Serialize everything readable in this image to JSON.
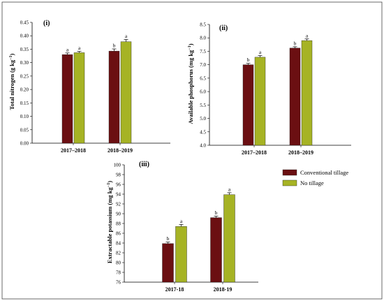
{
  "legend": {
    "items": [
      {
        "label": "Conventional tillage",
        "color": "#6b0f12"
      },
      {
        "label": "No tillage",
        "color": "#a6b324"
      }
    ]
  },
  "chart_data": [
    {
      "type": "bar",
      "panel_label": "(i)",
      "ylabel": "Total nitrogen (g kg",
      "ylabel_sup": "−1",
      "ylabel_end": ")",
      "ylim": [
        0,
        0.45
      ],
      "yticks": [
        "0.00",
        "0.05",
        "0.10",
        "0.15",
        "0.20",
        "0.25",
        "0.30",
        "0.35",
        "0.40",
        "0.45"
      ],
      "categories": [
        "2017–2018",
        "2018–2019"
      ],
      "series": [
        {
          "name": "Conventional tillage",
          "values": [
            0.33,
            0.343
          ],
          "errors": [
            0.006,
            0.008
          ],
          "letters": [
            "a",
            "b"
          ]
        },
        {
          "name": "No tillage",
          "values": [
            0.337,
            0.378
          ],
          "errors": [
            0.005,
            0.008
          ],
          "letters": [
            "a",
            "a"
          ]
        }
      ]
    },
    {
      "type": "bar",
      "panel_label": "(ii)",
      "ylabel": "Available phosphorus (mg kg",
      "ylabel_sup": "−1",
      "ylabel_end": ")",
      "ylim": [
        4.0,
        8.5
      ],
      "yticks": [
        "4.0",
        "4.5",
        "5.0",
        "5.5",
        "6.0",
        "6.5",
        "7.0",
        "7.5",
        "8.0",
        "8.5"
      ],
      "categories": [
        "2017–2018",
        "2018–2019"
      ],
      "series": [
        {
          "name": "Conventional tillage",
          "values": [
            7.0,
            7.62
          ],
          "errors": [
            0.05,
            0.05
          ],
          "letters": [
            "b",
            "b"
          ]
        },
        {
          "name": "No tillage",
          "values": [
            7.28,
            7.9
          ],
          "errors": [
            0.06,
            0.06
          ],
          "letters": [
            "a",
            "a"
          ]
        }
      ]
    },
    {
      "type": "bar",
      "panel_label": "(iii)",
      "ylabel": "Extractable potassium (mg kg",
      "ylabel_sup": "−1",
      "ylabel_end": ")",
      "ylim": [
        76,
        100
      ],
      "yticks": [
        "76",
        "78",
        "80",
        "82",
        "84",
        "86",
        "88",
        "90",
        "92",
        "94",
        "96",
        "98",
        "100"
      ],
      "categories": [
        "2017-18",
        "2018-19"
      ],
      "series": [
        {
          "name": "Conventional tillage",
          "values": [
            83.9,
            89.2
          ],
          "errors": [
            0.3,
            0.3
          ],
          "letters": [
            "b",
            "b"
          ]
        },
        {
          "name": "No tillage",
          "values": [
            87.4,
            93.9
          ],
          "errors": [
            0.4,
            0.4
          ],
          "letters": [
            "a",
            "a"
          ]
        }
      ]
    }
  ]
}
